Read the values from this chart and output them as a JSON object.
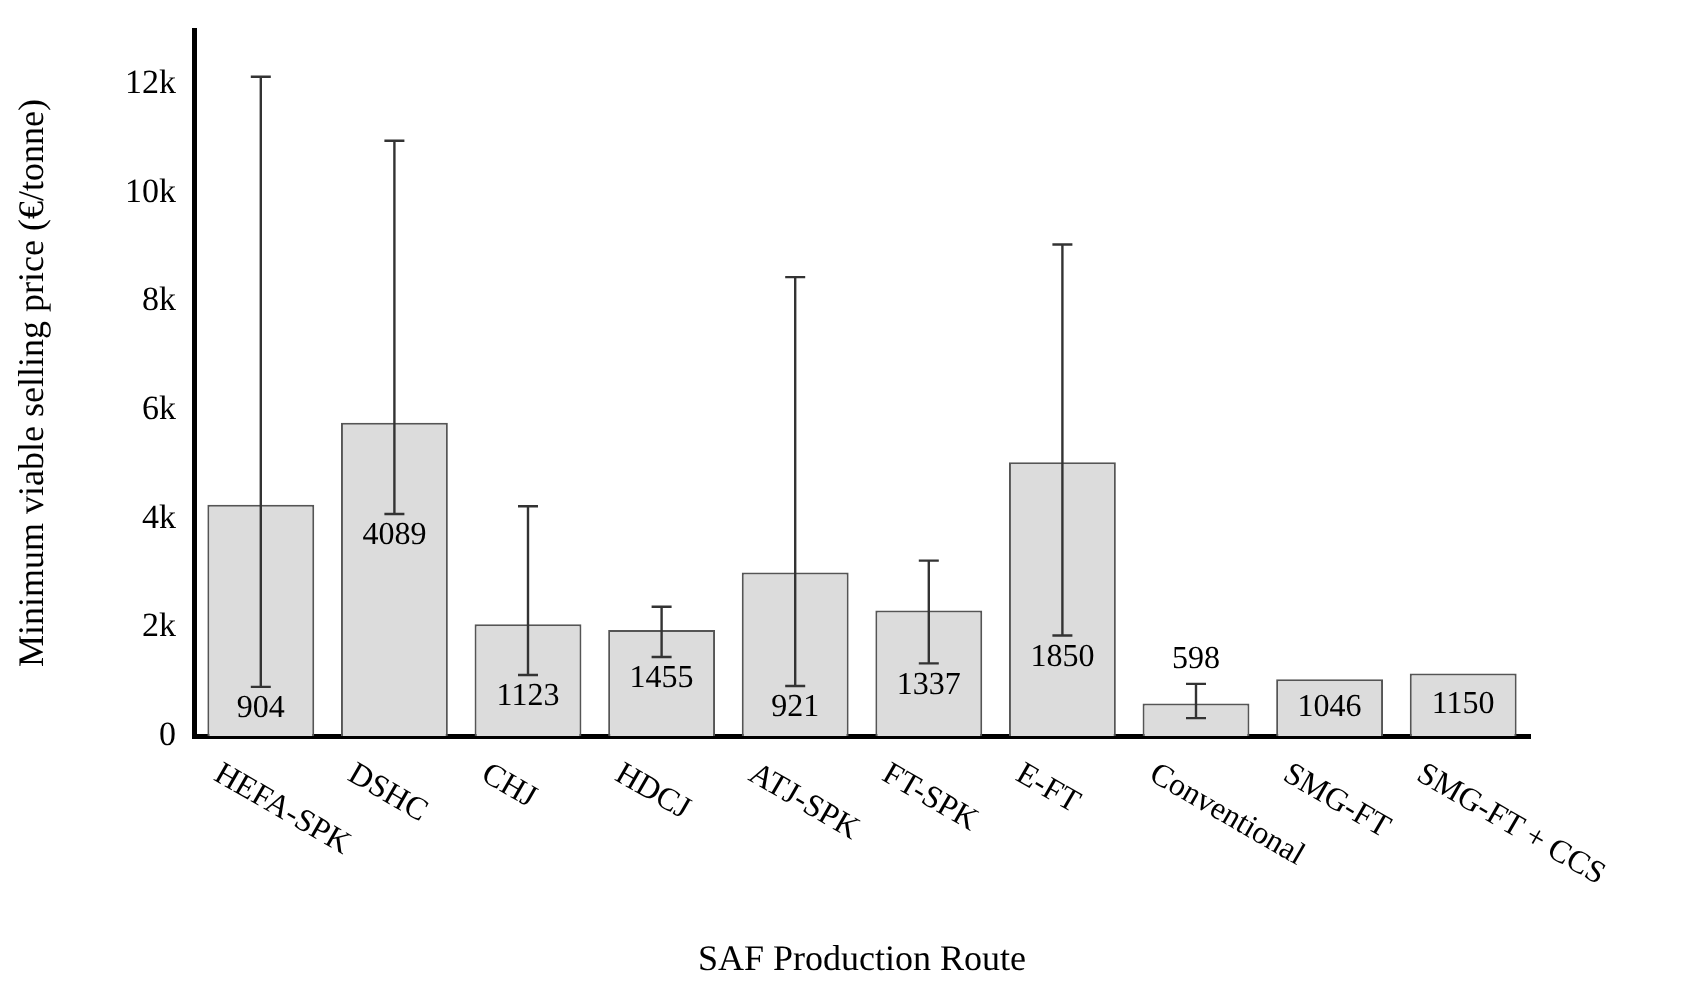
{
  "chart_data": {
    "type": "bar",
    "xlabel": "SAF Production Route",
    "ylabel": "Minimum viable selling price (€/tonne)",
    "categories": [
      "HEFA-SPK",
      "DSHC",
      "CHJ",
      "HDCJ",
      "ATJ-SPK",
      "FT-SPK",
      "E-FT",
      "Conventional",
      "SMG-FT",
      "SMG-FT + CCS"
    ],
    "values": [
      4260,
      5770,
      2060,
      1950,
      3010,
      2310,
      5040,
      598,
      1046,
      1150
    ],
    "errors": [
      [
        904,
        12140
      ],
      [
        4089,
        10960
      ],
      [
        1123,
        4230
      ],
      [
        1455,
        2380
      ],
      [
        921,
        8450
      ],
      [
        1337,
        3230
      ],
      [
        1850,
        9050
      ],
      [
        330,
        960
      ],
      null,
      null
    ],
    "color": "#dcdcdc",
    "ylim": [
      0,
      13000
    ],
    "yticks": [
      0,
      {
        "value": 2000,
        "label": "2k"
      },
      {
        "value": 4000,
        "label": "4k"
      },
      {
        "value": 6000,
        "label": "6k"
      },
      {
        "value": 8000,
        "label": "8k"
      },
      {
        "value": 10000,
        "label": "10k"
      },
      {
        "value": 12000,
        "label": "12k"
      }
    ],
    "grid": false,
    "legend": false,
    "annotations": [
      {
        "text": "904",
        "x": "HEFA-SPK",
        "y": 904
      },
      {
        "text": "4089",
        "x": "DSHC",
        "y": 4089
      },
      {
        "text": "1123",
        "x": "CHJ",
        "y": 1123
      },
      {
        "text": "1455",
        "x": "HDCJ",
        "y": 1455
      },
      {
        "text": "921",
        "x": "ATJ-SPK",
        "y": 921
      },
      {
        "text": "1337",
        "x": "FT-SPK",
        "y": 1337
      },
      {
        "text": "1850",
        "x": "E-FT",
        "y": 1850
      },
      {
        "text": "598",
        "x": "Conventional",
        "y": 598
      },
      {
        "text": "1046",
        "x": "SMG-FT",
        "y": 1046
      },
      {
        "text": "1150",
        "x": "SMG-FT + CCS",
        "y": 1150
      }
    ]
  }
}
